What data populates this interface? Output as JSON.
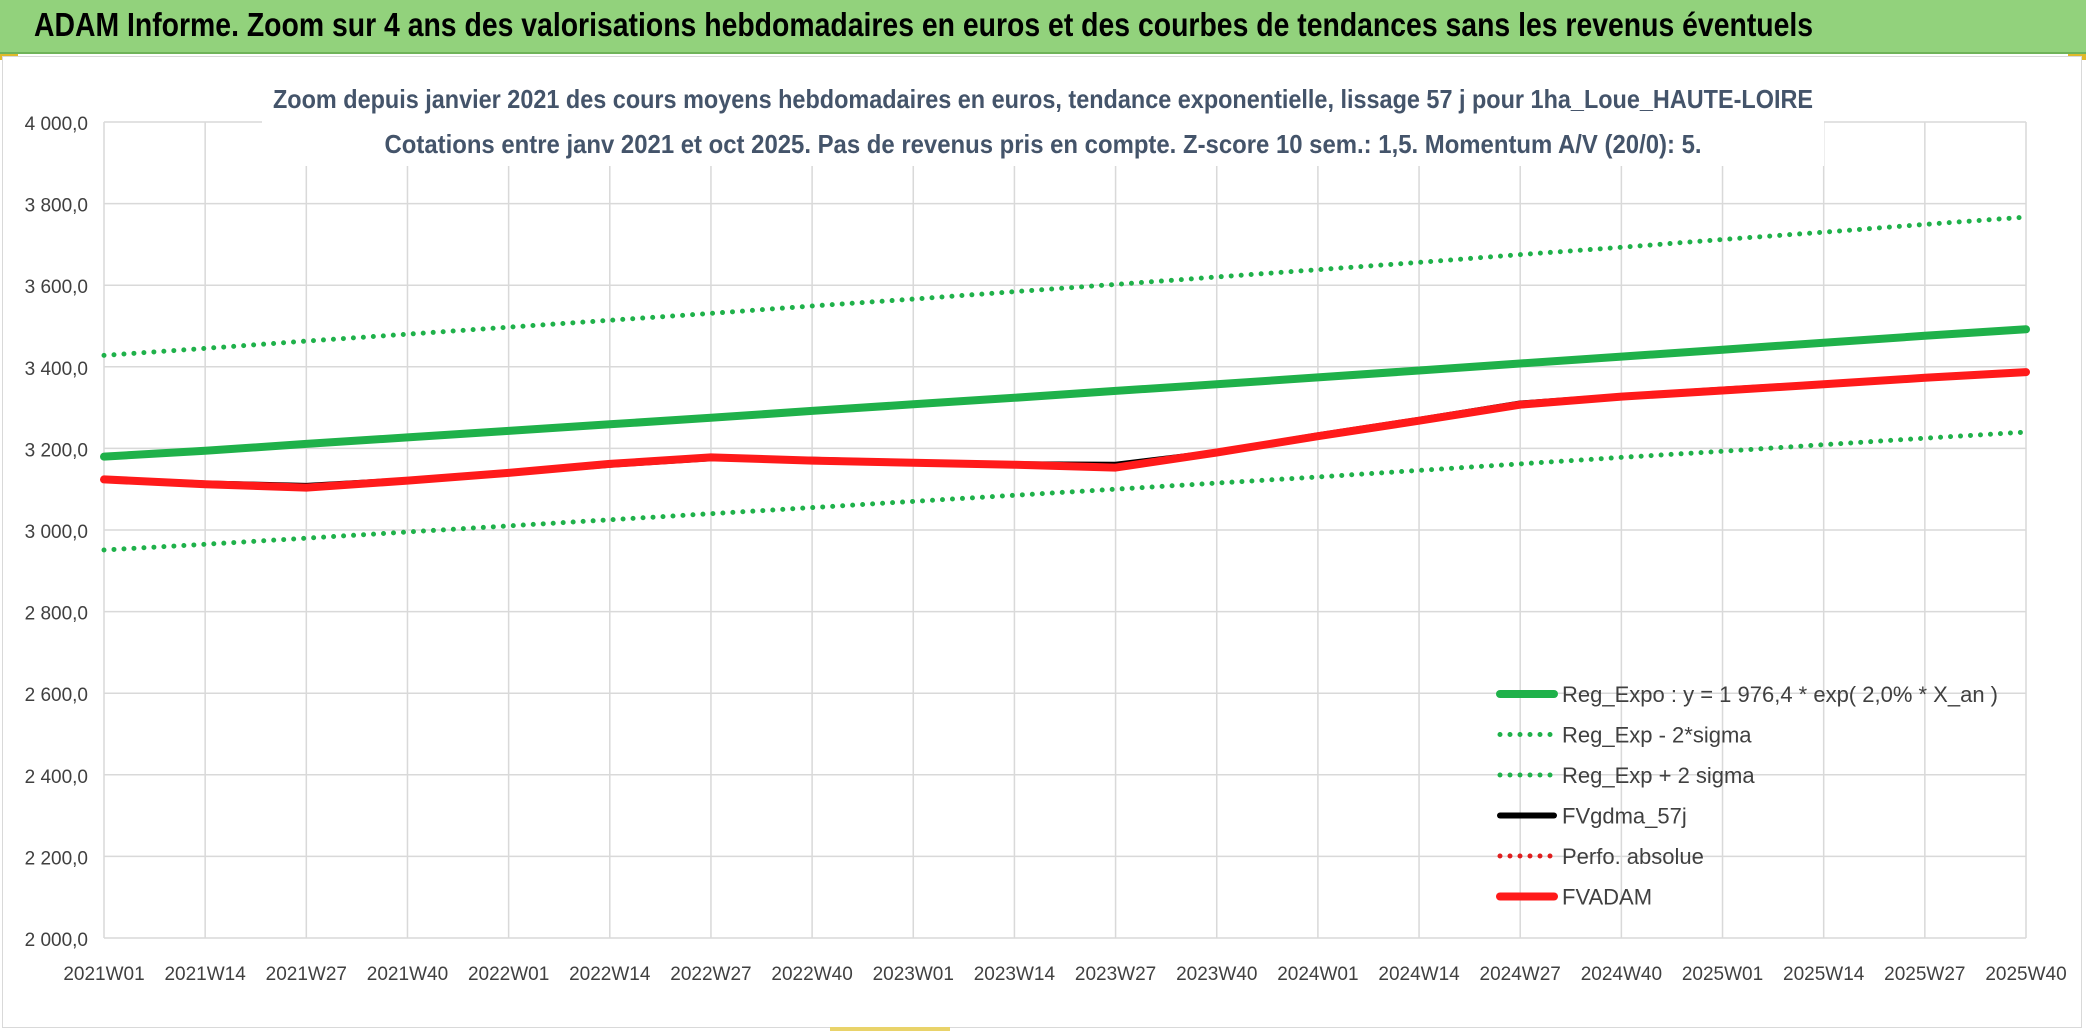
{
  "banner": {
    "title": "ADAM Informe. Zoom sur 4 ans des valorisations hebdomadaires en euros et des courbes de tendances sans les revenus éventuels"
  },
  "chart_data": {
    "type": "line",
    "title": "Zoom depuis janvier 2021 des cours moyens hebdomadaires en euros, tendance exponentielle, lissage 57 j pour 1ha_Loue_HAUTE-LOIRE",
    "subtitle": "Cotations entre janv 2021 et oct 2025. Pas de revenus pris en compte. Z-score 10 sem.: 1,5. Momentum A/V (20/0): 5.",
    "xlabel": "",
    "ylabel": "",
    "ylim": [
      2000,
      4000
    ],
    "y_ticks": [
      2000,
      2200,
      2400,
      2600,
      2800,
      3000,
      3200,
      3400,
      3600,
      3800,
      4000
    ],
    "y_tick_labels": [
      "2 000,0",
      "2 200,0",
      "2 400,0",
      "2 600,0",
      "2 800,0",
      "3 000,0",
      "3 200,0",
      "3 400,0",
      "3 600,0",
      "3 800,0",
      "4 000,0"
    ],
    "x_tick_labels": [
      "2021W01",
      "2021W14",
      "2021W27",
      "2021W40",
      "2022W01",
      "2022W14",
      "2022W27",
      "2022W40",
      "2023W01",
      "2023W14",
      "2023W27",
      "2023W40",
      "2024W01",
      "2024W14",
      "2024W27",
      "2024W40",
      "2025W01",
      "2025W14",
      "2025W27",
      "2025W40"
    ],
    "grid": true,
    "legend_position": "bottom-right",
    "series": [
      {
        "name": "Reg_Expo : y = 1 976,4 * exp( 2,0% *  X_an )",
        "style": "solid-thick",
        "color": "#1fb14a",
        "values": [
          3180,
          3194,
          3211,
          3227,
          3243,
          3259,
          3275,
          3292,
          3308,
          3324,
          3341,
          3357,
          3374,
          3391,
          3408,
          3425,
          3442,
          3459,
          3476,
          3492
        ]
      },
      {
        "name": "Reg_Exp - 2*sigma",
        "style": "dotted",
        "color": "#1fb14a",
        "values": [
          2951,
          2965,
          2980,
          2995,
          3010,
          3025,
          3040,
          3055,
          3070,
          3085,
          3100,
          3115,
          3130,
          3146,
          3162,
          3178,
          3193,
          3209,
          3225,
          3240
        ]
      },
      {
        "name": "Reg_Exp + 2 sigma",
        "style": "dotted",
        "color": "#1fb14a",
        "values": [
          3428,
          3445,
          3463,
          3480,
          3497,
          3514,
          3531,
          3549,
          3566,
          3584,
          3602,
          3620,
          3638,
          3656,
          3675,
          3693,
          3712,
          3730,
          3749,
          3767
        ]
      },
      {
        "name": "FVgdma_57j",
        "style": "solid",
        "color": "#000000",
        "values": [
          3125,
          3114,
          3108,
          3122,
          3140,
          3160,
          3176,
          3172,
          3166,
          3161,
          3160,
          3190,
          3232,
          3270,
          3310,
          3328,
          3344,
          3358,
          3374,
          3388
        ]
      },
      {
        "name": "Perfo. absolue",
        "style": "dotted",
        "color": "#e01e1e",
        "values": []
      },
      {
        "name": "FVADAM",
        "style": "solid-thick",
        "color": "#ff1a1a",
        "values": [
          3124,
          3112,
          3104,
          3121,
          3140,
          3162,
          3178,
          3170,
          3165,
          3160,
          3153,
          3190,
          3230,
          3268,
          3307,
          3327,
          3342,
          3357,
          3373,
          3387
        ]
      }
    ]
  }
}
